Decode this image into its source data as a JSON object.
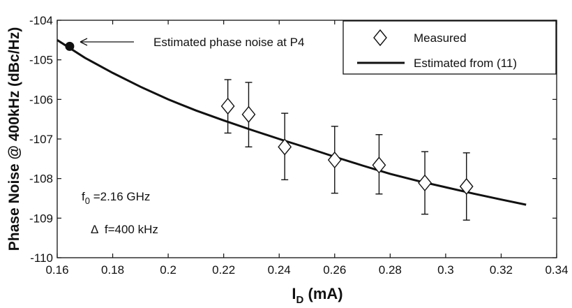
{
  "chart_data": {
    "type": "line",
    "xlabel": "I",
    "xlabel_sub": "D",
    "xlabel_unit": " (mA)",
    "ylabel": "Phase Noise @ 400kHz (dBc/Hz)",
    "xlim": [
      0.16,
      0.34
    ],
    "ylim": [
      -110,
      -104
    ],
    "xticks": [
      "0.16",
      "0.18",
      "0.2",
      "0.22",
      "0.24",
      "0.26",
      "0.28",
      "0.3",
      "0.32",
      "0.34"
    ],
    "yticks": [
      "-104",
      "-105",
      "-106",
      "-107",
      "-108",
      "-109",
      "-110"
    ],
    "grid": false,
    "legend_position": "top-right",
    "series": [
      {
        "name": "Measured",
        "marker": "diamond",
        "x": [
          0.2215,
          0.229,
          0.242,
          0.26,
          0.276,
          0.2925,
          0.3075
        ],
        "y": [
          -106.17,
          -106.38,
          -107.2,
          -107.53,
          -107.66,
          -108.11,
          -108.2
        ],
        "y_low": [
          -106.85,
          -107.2,
          -108.03,
          -108.37,
          -108.39,
          -108.9,
          -109.05
        ],
        "y_high": [
          -105.5,
          -105.57,
          -106.35,
          -106.68,
          -106.89,
          -107.32,
          -107.35
        ]
      },
      {
        "name": "Estimated from (11)",
        "style": "solid",
        "x": [
          0.16,
          0.17,
          0.18,
          0.19,
          0.2,
          0.21,
          0.22,
          0.23,
          0.24,
          0.25,
          0.26,
          0.27,
          0.28,
          0.29,
          0.3,
          0.31,
          0.32,
          0.329
        ],
        "y": [
          -104.5,
          -104.95,
          -105.33,
          -105.68,
          -106.0,
          -106.28,
          -106.53,
          -106.77,
          -107.0,
          -107.22,
          -107.45,
          -107.67,
          -107.88,
          -108.06,
          -108.22,
          -108.38,
          -108.53,
          -108.66
        ]
      }
    ],
    "highlight_point": {
      "x": 0.1645,
      "y": -104.66
    },
    "annotations": {
      "arrow_text": "Estimated phase noise at P4",
      "f0_symbol": "f",
      "f0_sub": "0",
      "f0_value": " =2.16 GHz",
      "delta_symbol": "Δ",
      "delta_value": "  f=400 kHz"
    }
  }
}
